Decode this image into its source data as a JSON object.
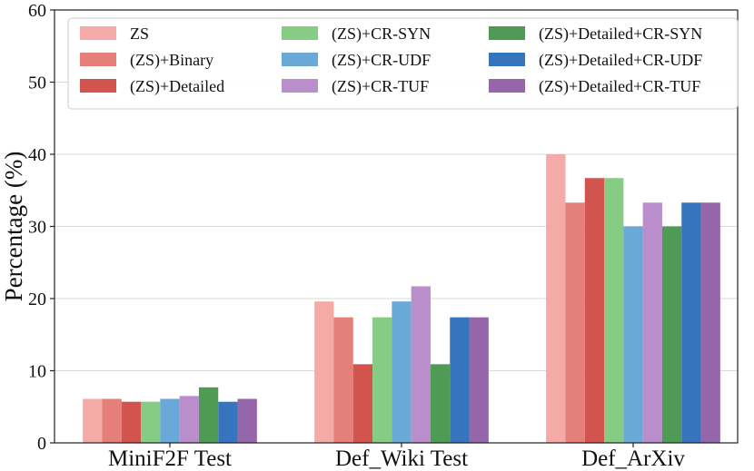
{
  "chart_data": {
    "type": "bar",
    "title": "",
    "xlabel": "",
    "ylabel": "Percentage (%)",
    "ylim": [
      0,
      60
    ],
    "yticks": [
      0,
      10,
      20,
      30,
      40,
      50,
      60
    ],
    "grid": "horizontal",
    "legend_position": "top",
    "categories": [
      "MiniF2F Test",
      "Def_Wiki Test",
      "Def_ArXiv"
    ],
    "series": [
      {
        "name": "ZS",
        "color": "#f4aaa6",
        "values": [
          6.1,
          19.6,
          40.0
        ]
      },
      {
        "name": "(ZS)+Binary",
        "color": "#e57f79",
        "values": [
          6.1,
          17.4,
          33.3
        ]
      },
      {
        "name": "(ZS)+Detailed",
        "color": "#d1544f",
        "values": [
          5.7,
          10.9,
          36.7
        ]
      },
      {
        "name": "(ZS)+CR-SYN",
        "color": "#86cc84",
        "values": [
          5.7,
          17.4,
          36.7
        ]
      },
      {
        "name": "(ZS)+CR-UDF",
        "color": "#6aa8d7",
        "values": [
          6.1,
          19.6,
          30.0
        ]
      },
      {
        "name": "(ZS)+CR-TUF",
        "color": "#b98ecb",
        "values": [
          6.5,
          21.7,
          33.3
        ]
      },
      {
        "name": "(ZS)+Detailed+CR-SYN",
        "color": "#4f9a55",
        "values": [
          7.7,
          10.9,
          30.0
        ]
      },
      {
        "name": "(ZS)+Detailed+CR-UDF",
        "color": "#3675bd",
        "values": [
          5.7,
          17.4,
          33.3
        ]
      },
      {
        "name": "(ZS)+Detailed+CR-TUF",
        "color": "#9566aa",
        "values": [
          6.1,
          17.4,
          33.3
        ]
      }
    ]
  }
}
